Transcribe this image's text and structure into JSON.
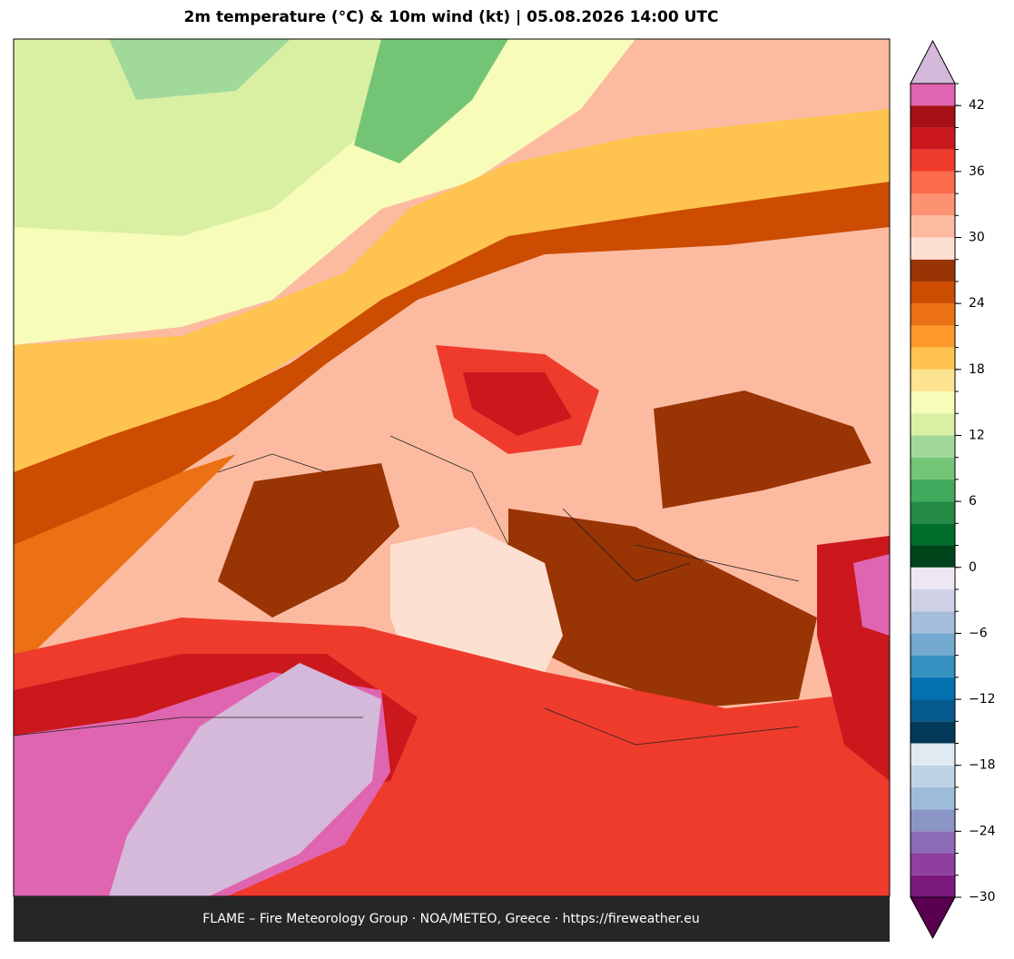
{
  "title": "2m temperature (°C) & 10m wind (kt)  |  05.08.2026 14:00 UTC",
  "footer": "FLAME – Fire Meteorology Group · NOA/METEO, Greece · https://fireweather.eu",
  "colorbar": {
    "levels": [
      -30,
      -28,
      -26,
      -24,
      -22,
      -20,
      -18,
      -16,
      -14,
      -12,
      -10,
      -8,
      -6,
      -4,
      -2,
      0,
      2,
      4,
      6,
      8,
      10,
      12,
      14,
      16,
      18,
      20,
      22,
      24,
      26,
      28,
      30,
      32,
      34,
      36,
      38,
      40,
      42,
      44
    ],
    "colors": [
      "#7b1a7c",
      "#8e3fa0",
      "#8b6bb5",
      "#8c96c6",
      "#9ebcda",
      "#bfd3e6",
      "#dfeaf3",
      "#023858",
      "#045a8d",
      "#0570b0",
      "#3690c0",
      "#74a9cf",
      "#a6bddb",
      "#d0d1e6",
      "#ece7f2",
      "#00441b",
      "#006d2c",
      "#238b45",
      "#41ab5d",
      "#74c476",
      "#a1d99b",
      "#d9f0a3",
      "#f7fcb9",
      "#fee391",
      "#fec44f",
      "#fe9929",
      "#ec7014",
      "#cc4c02",
      "#993404",
      "#fee0d2",
      "#fcbba1",
      "#fc9272",
      "#fb6a4a",
      "#ef3b2c",
      "#cb181d",
      "#a50f15",
      "#df65b0"
    ],
    "under_color": "#5a0050",
    "over_color": "#d4b9da",
    "ticks": [
      {
        "value": -30,
        "label": "−30"
      },
      {
        "value": -24,
        "label": "−24"
      },
      {
        "value": -18,
        "label": "−18"
      },
      {
        "value": -12,
        "label": "−12"
      },
      {
        "value": -6,
        "label": "−6"
      },
      0,
      6,
      12,
      18,
      24,
      30,
      36,
      42
    ]
  }
}
